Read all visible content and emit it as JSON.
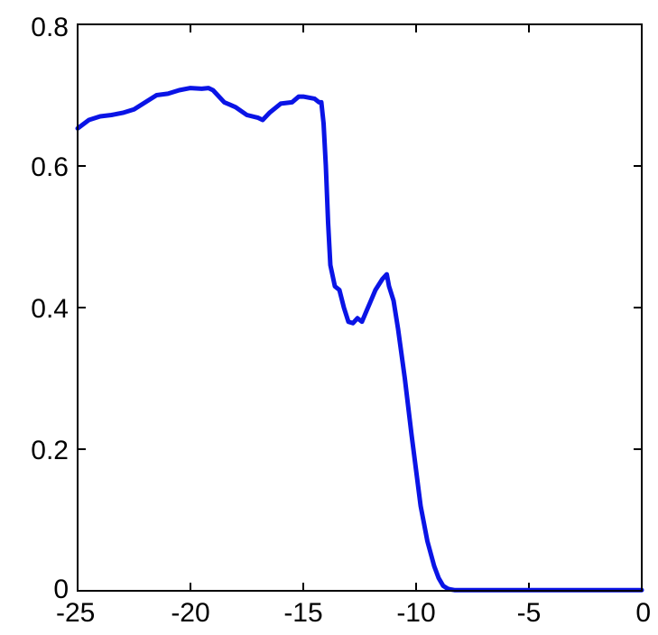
{
  "chart_data": {
    "type": "line",
    "title": "",
    "xlabel": "",
    "ylabel": "",
    "xlim": [
      -25,
      0
    ],
    "ylim": [
      0,
      0.8
    ],
    "grid": false,
    "x_ticks": [
      -25,
      -20,
      -15,
      -10,
      -5,
      0
    ],
    "x_tick_labels": [
      "-25",
      "-20",
      "-15",
      "-10",
      "-5",
      "0"
    ],
    "y_ticks": [
      0,
      0.2,
      0.4,
      0.6,
      0.8
    ],
    "y_tick_labels": [
      "0",
      "0.2",
      "0.4",
      "0.6",
      "0.8"
    ],
    "series": [
      {
        "color": "#0a14e6",
        "x": [
          -25,
          -24.5,
          -24,
          -23.5,
          -23,
          -22.5,
          -22,
          -21.5,
          -21,
          -20.5,
          -20,
          -19.5,
          -19.2,
          -19,
          -18.5,
          -18,
          -17.5,
          -17,
          -16.8,
          -16.5,
          -16,
          -15.5,
          -15.2,
          -15,
          -14.5,
          -14.3,
          -14.2,
          -14.1,
          -14,
          -13.9,
          -13.8,
          -13.6,
          -13.4,
          -13.2,
          -13,
          -12.8,
          -12.6,
          -12.4,
          -12.2,
          -12,
          -11.8,
          -11.5,
          -11.3,
          -11.2,
          -11,
          -10.8,
          -10.5,
          -10.2,
          -10,
          -9.8,
          -9.5,
          -9.2,
          -9,
          -8.8,
          -8.6,
          -8.5,
          -8.3,
          -8,
          -7.5,
          -5,
          -2.5,
          0
        ],
        "y": [
          0.653,
          0.665,
          0.67,
          0.672,
          0.675,
          0.68,
          0.69,
          0.7,
          0.702,
          0.707,
          0.71,
          0.709,
          0.71,
          0.707,
          0.69,
          0.683,
          0.672,
          0.668,
          0.665,
          0.675,
          0.688,
          0.69,
          0.698,
          0.698,
          0.695,
          0.69,
          0.69,
          0.66,
          0.6,
          0.52,
          0.46,
          0.43,
          0.425,
          0.4,
          0.38,
          0.378,
          0.385,
          0.38,
          0.395,
          0.41,
          0.425,
          0.44,
          0.447,
          0.43,
          0.41,
          0.37,
          0.3,
          0.22,
          0.17,
          0.12,
          0.07,
          0.035,
          0.018,
          0.007,
          0.003,
          0.002,
          0.001,
          0.001,
          0.001,
          0.001,
          0.001,
          0.001
        ]
      }
    ]
  }
}
